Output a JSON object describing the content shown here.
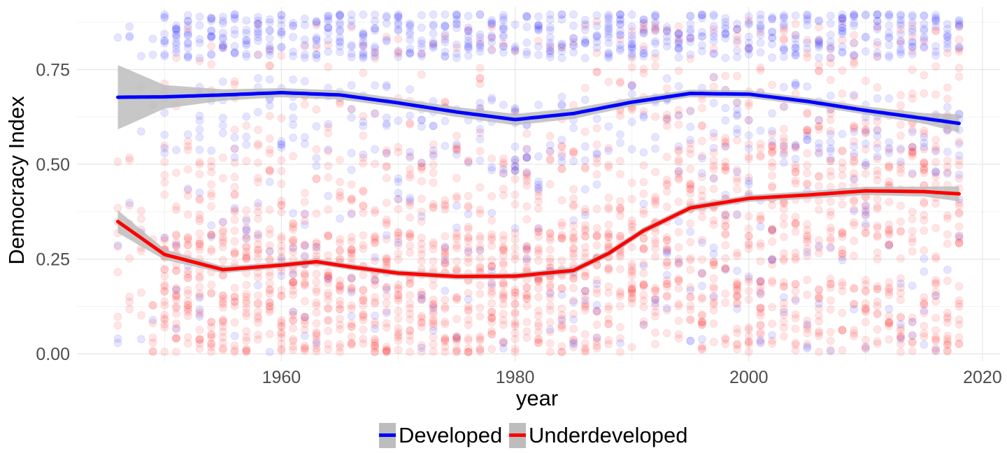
{
  "chart_data": {
    "type": "scatter",
    "xlabel": "year",
    "ylabel": "Democracy Index",
    "xlim": [
      1942.5,
      2021.5
    ],
    "ylim": [
      -0.02,
      0.915
    ],
    "x_ticks": [
      1960,
      1980,
      2000,
      2020
    ],
    "x_tick_labels": [
      "1960",
      "1980",
      "2000",
      "2020"
    ],
    "y_ticks": [
      0.0,
      0.25,
      0.5,
      0.75
    ],
    "y_tick_labels": [
      "0.00",
      "0.25",
      "0.50",
      "0.75"
    ],
    "grid": true,
    "legend_position": "bottom",
    "point_alpha": 0.1,
    "series": [
      {
        "name": "Developed",
        "color": "#0000ff",
        "smooth_x": [
          1946,
          1950,
          1955,
          1960,
          1965,
          1970,
          1975,
          1980,
          1985,
          1990,
          1995,
          2000,
          2005,
          2010,
          2015,
          2018
        ],
        "smooth_y": [
          0.677,
          0.678,
          0.683,
          0.689,
          0.683,
          0.662,
          0.638,
          0.618,
          0.634,
          0.664,
          0.687,
          0.685,
          0.666,
          0.642,
          0.621,
          0.608
        ],
        "ci_lower": [
          0.592,
          0.647,
          0.668,
          0.677,
          0.671,
          0.65,
          0.625,
          0.603,
          0.62,
          0.653,
          0.677,
          0.675,
          0.656,
          0.631,
          0.607,
          0.584
        ],
        "ci_upper": [
          0.762,
          0.709,
          0.698,
          0.701,
          0.695,
          0.674,
          0.651,
          0.633,
          0.648,
          0.675,
          0.697,
          0.695,
          0.676,
          0.653,
          0.635,
          0.632
        ]
      },
      {
        "name": "Underdeveloped",
        "color": "#ff0000",
        "smooth_x": [
          1946,
          1950,
          1955,
          1960,
          1963,
          1966,
          1970,
          1975,
          1980,
          1985,
          1988,
          1991,
          1995,
          2000,
          2005,
          2010,
          2015,
          2018
        ],
        "smooth_y": [
          0.349,
          0.262,
          0.222,
          0.234,
          0.243,
          0.229,
          0.213,
          0.204,
          0.205,
          0.22,
          0.265,
          0.325,
          0.385,
          0.41,
          0.419,
          0.43,
          0.428,
          0.422
        ],
        "ci_lower": [
          0.319,
          0.248,
          0.213,
          0.226,
          0.235,
          0.221,
          0.205,
          0.196,
          0.197,
          0.211,
          0.256,
          0.316,
          0.376,
          0.401,
          0.409,
          0.419,
          0.415,
          0.402
        ],
        "ci_upper": [
          0.379,
          0.276,
          0.231,
          0.242,
          0.251,
          0.237,
          0.221,
          0.212,
          0.213,
          0.229,
          0.274,
          0.334,
          0.394,
          0.419,
          0.429,
          0.441,
          0.441,
          0.442
        ]
      }
    ],
    "ci_fill_color": "#bdbdbd"
  }
}
